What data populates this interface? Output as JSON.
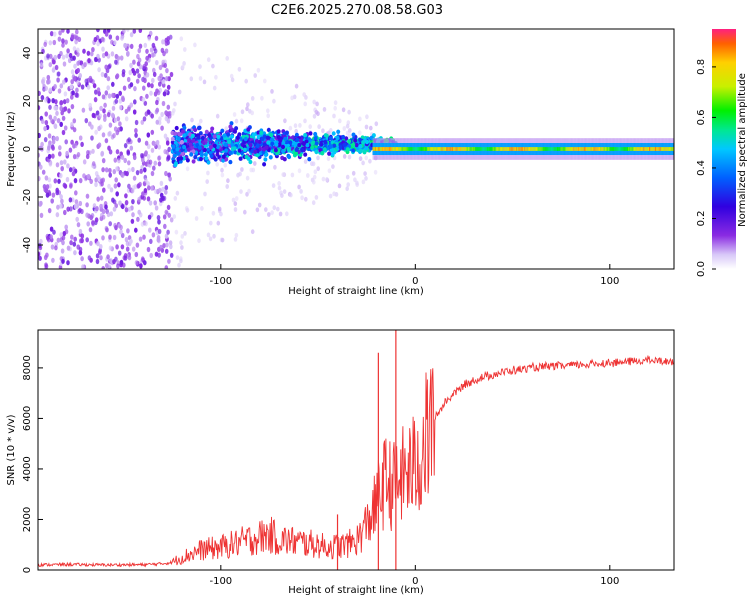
{
  "title": "C2E6.2025.270.08.58.G03",
  "colors": {
    "snr_line": "#ee3333",
    "noise_dots": "#7a22e8",
    "background": "#ffffff"
  },
  "chart_data": [
    {
      "type": "heatmap",
      "name": "spectrogram",
      "xlabel": "Height of straight line (km)",
      "ylabel": "Frequency (Hz)",
      "xlim": [
        -194,
        133
      ],
      "ylim": [
        -50,
        50
      ],
      "xticks": [
        -100,
        0,
        100
      ],
      "xtick_labels": [
        "-100",
        "0",
        "100"
      ],
      "yticks": [
        -40,
        -20,
        0,
        20,
        40
      ],
      "ytick_labels": [
        "-40",
        "-20",
        "0",
        "20",
        "40"
      ],
      "colorbar": {
        "label": "Normalized spectral amplitude",
        "range": [
          0,
          0.95
        ],
        "ticks": [
          0,
          0.2,
          0.4,
          0.6,
          0.8
        ],
        "tick_labels": [
          "0.0",
          "0.2",
          "0.4",
          "0.6",
          "0.8"
        ],
        "colormap": [
          "#ffffff",
          "#d8c8f8",
          "#8a2be2",
          "#3000e0",
          "#0060ff",
          "#00c8ff",
          "#00e890",
          "#00f000",
          "#c8f000",
          "#ffd000",
          "#ff6000",
          "#ff2080"
        ]
      },
      "description_regions": [
        {
          "x_range": [
            -194,
            -125
          ],
          "freq_spread": 50,
          "amplitude": 0.15
        },
        {
          "x_range": [
            -125,
            -20
          ],
          "freq_spread": 10,
          "amplitude": 0.4
        },
        {
          "x_range": [
            -20,
            133
          ],
          "freq_spread": 2,
          "amplitude": 0.8
        }
      ]
    },
    {
      "type": "line",
      "name": "snr",
      "xlabel": "Height of straight line (km)",
      "ylabel": "SNR (10 * v/v)",
      "xlim": [
        -194,
        133
      ],
      "ylim": [
        0,
        9500
      ],
      "xticks": [
        -100,
        0,
        100
      ],
      "xtick_labels": [
        "-100",
        "0",
        "100"
      ],
      "yticks": [
        0,
        2000,
        4000,
        6000,
        8000
      ],
      "ytick_labels": [
        "0",
        "2000",
        "4000",
        "6000",
        "8000"
      ],
      "series": [
        {
          "name": "SNR",
          "x": [
            -194,
            -180,
            -160,
            -140,
            -130,
            -125,
            -120,
            -110,
            -100,
            -90,
            -80,
            -75,
            -70,
            -60,
            -50,
            -45,
            -40,
            -35,
            -30,
            -25,
            -20,
            -18,
            -15,
            -10,
            -8,
            -5,
            0,
            5,
            10,
            15,
            20,
            25,
            30,
            40,
            50,
            60,
            70,
            80,
            90,
            100,
            110,
            120,
            133
          ],
          "y": [
            200,
            220,
            200,
            210,
            250,
            300,
            500,
            800,
            900,
            1100,
            1300,
            1400,
            1200,
            1100,
            1000,
            900,
            950,
            1000,
            1200,
            1800,
            2600,
            3200,
            3500,
            3300,
            3600,
            3800,
            4100,
            5000,
            6000,
            6600,
            7000,
            7300,
            7500,
            7750,
            7900,
            8000,
            8050,
            8100,
            8150,
            8200,
            8250,
            8300,
            8250
          ]
        }
      ],
      "spikes": [
        {
          "x": -19,
          "y": 8600
        },
        {
          "x": -10,
          "y": 9500
        },
        {
          "x": -40,
          "y": 2200
        }
      ]
    }
  ]
}
